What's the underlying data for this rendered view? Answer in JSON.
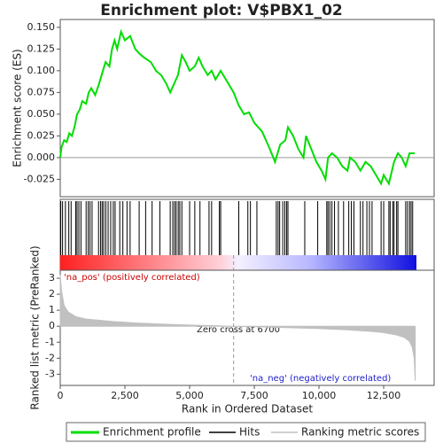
{
  "chart_data": [
    {
      "type": "line",
      "title": "Enrichment plot: V$PBX1_02",
      "ylabel": "Enrichment score (ES)",
      "x": [
        0,
        50,
        150,
        250,
        350,
        450,
        550,
        650,
        750,
        850,
        1000,
        1100,
        1200,
        1350,
        1500,
        1650,
        1750,
        1900,
        2000,
        2100,
        2200,
        2350,
        2500,
        2700,
        2900,
        3050,
        3250,
        3500,
        3700,
        3900,
        4100,
        4250,
        4400,
        4550,
        4700,
        4850,
        5000,
        5200,
        5350,
        5500,
        5700,
        5850,
        6000,
        6200,
        6400,
        6700,
        6900,
        7100,
        7300,
        7500,
        7800,
        8100,
        8300,
        8500,
        8700,
        8800,
        9000,
        9200,
        9400,
        9500,
        9700,
        9900,
        10100,
        10250,
        10350,
        10500,
        10700,
        10900,
        11100,
        11200,
        11400,
        11600,
        11800,
        12000,
        12200,
        12400,
        12500,
        12700,
        12900,
        13050,
        13200,
        13350,
        13500,
        13700
      ],
      "series": [
        {
          "name": "Enrichment profile",
          "color": "#00dd00",
          "values": [
            0.0,
            0.012,
            0.02,
            0.018,
            0.028,
            0.025,
            0.035,
            0.05,
            0.055,
            0.065,
            0.062,
            0.075,
            0.08,
            0.072,
            0.085,
            0.1,
            0.11,
            0.105,
            0.125,
            0.135,
            0.125,
            0.145,
            0.135,
            0.14,
            0.125,
            0.12,
            0.115,
            0.11,
            0.1,
            0.095,
            0.085,
            0.075,
            0.085,
            0.095,
            0.118,
            0.11,
            0.1,
            0.105,
            0.115,
            0.105,
            0.095,
            0.1,
            0.09,
            0.1,
            0.09,
            0.075,
            0.06,
            0.05,
            0.052,
            0.04,
            0.03,
            0.01,
            -0.005,
            0.015,
            0.02,
            0.035,
            0.025,
            0.01,
            0.0,
            0.025,
            0.01,
            -0.005,
            -0.015,
            -0.025,
            0.0,
            0.005,
            0.0,
            -0.01,
            -0.015,
            0.0,
            -0.005,
            -0.015,
            -0.005,
            -0.01,
            -0.02,
            -0.03,
            -0.02,
            -0.03,
            -0.005,
            0.005,
            0.0,
            -0.01,
            0.005,
            0.005
          ]
        }
      ],
      "xlim": [
        0,
        14450
      ],
      "ylim": [
        -0.045,
        0.159
      ],
      "yticks": [
        {
          "value": -0.025,
          "label": "-0.025"
        },
        {
          "value": 0,
          "label": "0.000"
        },
        {
          "value": 0.025,
          "label": "0.025"
        },
        {
          "value": 0.05,
          "label": "0.050"
        },
        {
          "value": 0.075,
          "label": "0.075"
        },
        {
          "value": 0.1,
          "label": "0.100"
        },
        {
          "value": 0.125,
          "label": "0.125"
        },
        {
          "value": 0.15,
          "label": "0.150"
        }
      ]
    },
    {
      "type": "rug",
      "xlim": [
        0,
        14450
      ],
      "series": [
        {
          "name": "Hits",
          "color": "#000000",
          "x": [
            20,
            90,
            200,
            330,
            420,
            600,
            650,
            720,
            800,
            1000,
            1080,
            1150,
            1230,
            1480,
            1560,
            1620,
            1680,
            1760,
            1850,
            1950,
            2050,
            2120,
            2300,
            2420,
            2580,
            2700,
            3050,
            3300,
            3550,
            3850,
            4250,
            4350,
            4420,
            4480,
            4560,
            4620,
            4700,
            5000,
            5200,
            5400,
            5750,
            5850,
            6150,
            6200,
            6900,
            7250,
            7350,
            7600,
            8350,
            8420,
            8480,
            8600,
            8680,
            8750,
            8800,
            9450,
            9950,
            10300,
            10350,
            10420,
            10500,
            10600,
            10750,
            10950,
            11150,
            11250,
            11350,
            11600,
            11700,
            11850,
            11950,
            12050,
            12400,
            12500,
            12700,
            12750,
            12850,
            12900,
            13000,
            13050,
            13350,
            13420,
            13500,
            13560,
            13620
          ]
        }
      ]
    },
    {
      "type": "area",
      "ylabel": "Ranked list metric (PreRanked)",
      "xlabel": "Rank in Ordered Dataset",
      "x": [
        0,
        50,
        150,
        300,
        600,
        1000,
        2000,
        3000,
        4000,
        5000,
        6000,
        6700,
        8000,
        9000,
        10000,
        11000,
        12000,
        12500,
        13000,
        13300,
        13500,
        13600,
        13680,
        13720
      ],
      "series": [
        {
          "name": "Ranking metric scores",
          "color": "#c0c0c0",
          "values": [
            3.2,
            2.2,
            1.3,
            0.9,
            0.6,
            0.45,
            0.3,
            0.2,
            0.13,
            0.07,
            0.03,
            0,
            -0.05,
            -0.1,
            -0.15,
            -0.22,
            -0.32,
            -0.4,
            -0.55,
            -0.7,
            -0.95,
            -1.3,
            -2.0,
            -3.4
          ]
        }
      ],
      "xlim": [
        0,
        14450
      ],
      "ylim": [
        -3.7,
        3.5
      ],
      "xticks": [
        0,
        {
          "value": 2500,
          "label": "2,500"
        },
        {
          "value": 5000,
          "label": "5,000"
        },
        {
          "value": 7500,
          "label": "7,500"
        },
        {
          "value": 10000,
          "label": "10,000"
        },
        {
          "value": 12500,
          "label": "12,500"
        }
      ],
      "yticks": [
        -3,
        -2,
        -1,
        0,
        1,
        2,
        3
      ],
      "zero_cross": 6700,
      "annotations": [
        "'na_pos' (positively correlated)",
        "Zero cross at 6700",
        "'na_neg' (negatively correlated)"
      ]
    }
  ]
}
